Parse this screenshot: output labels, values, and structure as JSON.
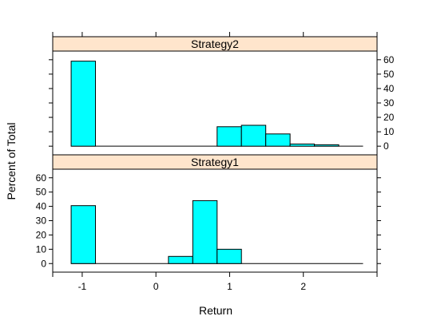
{
  "chart_data": {
    "type": "bar",
    "xlabel": "Return",
    "ylabel": "Percent of Total",
    "xlim": [
      -1.4,
      3.0
    ],
    "ylim": [
      -6,
      66
    ],
    "x_ticks": [
      -1,
      0,
      1,
      2
    ],
    "y_ticks": [
      0,
      10,
      20,
      30,
      40,
      50,
      60
    ],
    "bin_edges": [
      -1.15,
      -0.82,
      -0.49,
      -0.16,
      0.17,
      0.5,
      0.83,
      1.16,
      1.49,
      1.82,
      2.15,
      2.48,
      2.81
    ],
    "panels": [
      {
        "name": "Strategy2",
        "values": [
          59,
          0,
          0,
          0,
          0,
          0,
          13.5,
          14.5,
          8.5,
          1.5,
          1,
          0
        ]
      },
      {
        "name": "Strategy1",
        "values": [
          40.5,
          0,
          0,
          0,
          5,
          44,
          10,
          0,
          0,
          0,
          0,
          0
        ]
      }
    ],
    "colors": {
      "bar_fill": "#00ffff",
      "bar_stroke": "#000000",
      "strip_fill": "#ffe5cc"
    }
  }
}
